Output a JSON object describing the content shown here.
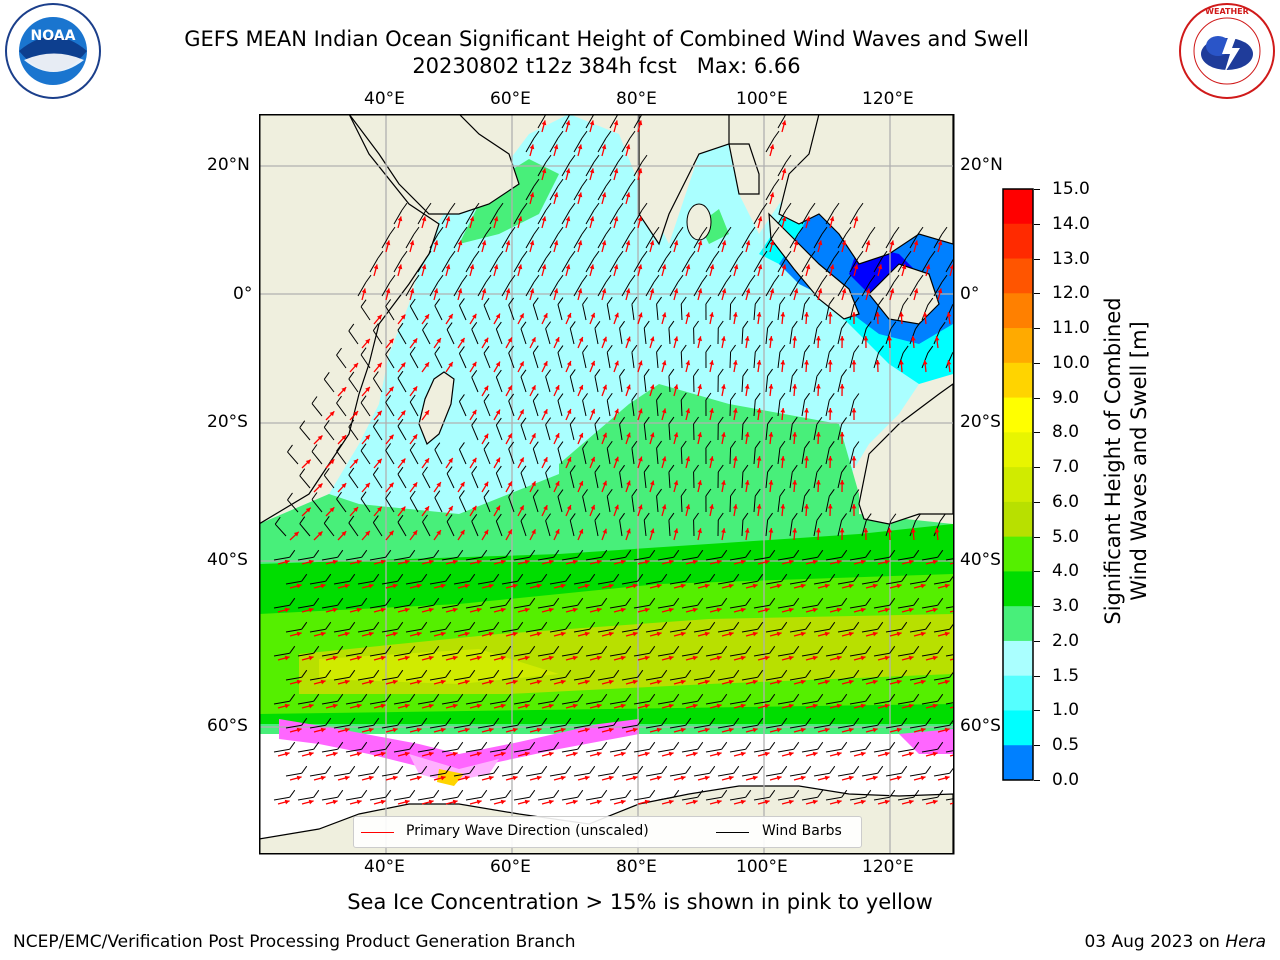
{
  "header": {
    "title_line1": "GEFS MEAN Indian Ocean Significant Height of Combined Wind Waves and Swell",
    "title_line2": "20230802 t12z 384h fcst   Max: 6.66"
  },
  "logos": {
    "noaa": {
      "text": "NOAA",
      "ring_text": "NATIONAL OCEANIC AND ATMOSPHERIC ADMINISTRATION · U.S. DEPARTMENT OF COMMERCE"
    },
    "nws": {
      "ring_text": "NATIONAL WEATHER SERVICE"
    }
  },
  "map": {
    "lon_labels": [
      "40°E",
      "60°E",
      "80°E",
      "100°E",
      "120°E"
    ],
    "lat_labels": [
      "20°N",
      "0°",
      "20°S",
      "40°S",
      "60°S"
    ],
    "colors": {
      "ocean_low": "#aaffff",
      "land": "#efefde"
    }
  },
  "legend": {
    "wave_label": "Primary Wave Direction (unscaled)",
    "wave_color": "#ff0000",
    "wind_label": "Wind Barbs",
    "wind_color": "#000000"
  },
  "colorbar": {
    "ticks": [
      "15.0",
      "14.0",
      "13.0",
      "12.0",
      "11.0",
      "10.0",
      "9.0",
      "8.0",
      "7.0",
      "6.0",
      "5.0",
      "4.0",
      "3.0",
      "2.0",
      "1.5",
      "1.0",
      "0.5",
      "0.0"
    ],
    "colors": [
      "#ff0000",
      "#ff2a00",
      "#ff5500",
      "#ff8000",
      "#ffaa00",
      "#ffd400",
      "#ffff00",
      "#e8f500",
      "#d0eb00",
      "#b8e000",
      "#55ef00",
      "#00dd00",
      "#48ef7a",
      "#aaffff",
      "#55ffff",
      "#00ffff",
      "#0080ff",
      "#0000ff"
    ],
    "label_line1": "Significant Height of Combined",
    "label_line2": "Wind Waves and Swell [m]"
  },
  "footer": {
    "sea_ice_note": "Sea Ice Concentration > 15% is shown in pink to yellow",
    "credit": "NCEP/EMC/Verification Post Processing Product Generation Branch",
    "date": "03 Aug 2023 on",
    "machine": "Hera"
  }
}
